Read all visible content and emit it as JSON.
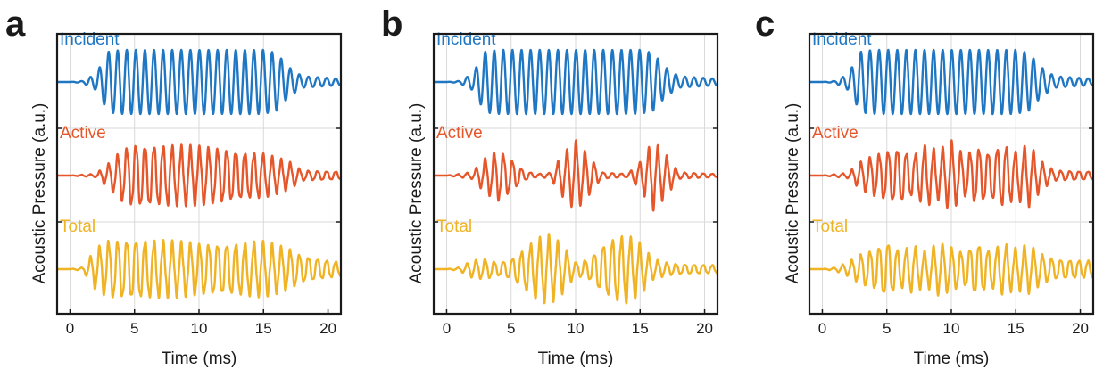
{
  "chart_data": [
    {
      "type": "line",
      "panel": "a",
      "xlabel": "Time (ms)",
      "ylabel": "Acoustic Pressure (a.u.)",
      "xlim": [
        -1,
        21
      ],
      "xticks": [
        0,
        5,
        10,
        15,
        20
      ],
      "grid": true,
      "series": [
        {
          "name": "Incident",
          "color": "#1f77c4",
          "envelope": [
            [
              0,
              0
            ],
            [
              1,
              0.03
            ],
            [
              2,
              0.25
            ],
            [
              3,
              0.95
            ],
            [
              4,
              1
            ],
            [
              15,
              1
            ],
            [
              16,
              0.9
            ],
            [
              17,
              0.45
            ],
            [
              18,
              0.18
            ],
            [
              21,
              0.1
            ]
          ],
          "freq_per_ms": 1.42
        },
        {
          "name": "Active",
          "color": "#e5572b",
          "envelope": [
            [
              0,
              0
            ],
            [
              2,
              0.05
            ],
            [
              3,
              0.35
            ],
            [
              4,
              0.75
            ],
            [
              5,
              0.95
            ],
            [
              12,
              0.8
            ],
            [
              15,
              0.65
            ],
            [
              17,
              0.4
            ],
            [
              18,
              0.15
            ],
            [
              21,
              0.12
            ]
          ],
          "freq_per_ms": 1.42
        },
        {
          "name": "Total",
          "color": "#f0b323",
          "envelope": [
            [
              0,
              0
            ],
            [
              1,
              0.05
            ],
            [
              2,
              0.6
            ],
            [
              3,
              0.85
            ],
            [
              5,
              0.9
            ],
            [
              10,
              0.75
            ],
            [
              15,
              0.8
            ],
            [
              17,
              0.6
            ],
            [
              18,
              0.4
            ],
            [
              21,
              0.2
            ]
          ],
          "freq_per_ms": 1.42
        }
      ]
    },
    {
      "type": "line",
      "panel": "b",
      "xlabel": "Time (ms)",
      "ylabel": "Acoustic Pressure (a.u.)",
      "xlim": [
        -1,
        21
      ],
      "xticks": [
        0,
        5,
        10,
        15,
        20
      ],
      "grid": true,
      "series": [
        {
          "name": "Incident",
          "color": "#1f77c4",
          "envelope": [
            [
              0,
              0
            ],
            [
              1,
              0.03
            ],
            [
              2,
              0.25
            ],
            [
              3,
              0.95
            ],
            [
              4,
              1
            ],
            [
              15,
              1
            ],
            [
              16,
              0.9
            ],
            [
              17,
              0.45
            ],
            [
              18,
              0.18
            ],
            [
              21,
              0.1
            ]
          ],
          "freq_per_ms": 1.42
        },
        {
          "name": "Active",
          "color": "#e5572b",
          "envelope": [
            [
              0,
              0
            ],
            [
              2,
              0.1
            ],
            [
              3,
              0.5
            ],
            [
              4,
              0.75
            ],
            [
              5,
              0.5
            ],
            [
              6,
              0.15
            ],
            [
              7,
              0.05
            ],
            [
              8,
              0.08
            ],
            [
              9,
              0.6
            ],
            [
              10,
              1
            ],
            [
              11,
              0.6
            ],
            [
              12,
              0.1
            ],
            [
              14,
              0.05
            ],
            [
              15,
              0.4
            ],
            [
              16,
              1
            ],
            [
              17,
              0.6
            ],
            [
              18,
              0.1
            ],
            [
              21,
              0.05
            ]
          ],
          "freq_per_ms": 1.42
        },
        {
          "name": "Total",
          "color": "#f0b323",
          "envelope": [
            [
              0,
              0
            ],
            [
              1,
              0.05
            ],
            [
              2,
              0.25
            ],
            [
              3,
              0.3
            ],
            [
              4,
              0.2
            ],
            [
              5,
              0.3
            ],
            [
              6,
              0.6
            ],
            [
              7,
              0.9
            ],
            [
              8,
              1
            ],
            [
              9,
              0.7
            ],
            [
              10,
              0.2
            ],
            [
              11,
              0.3
            ],
            [
              12,
              0.7
            ],
            [
              13,
              0.95
            ],
            [
              14,
              1
            ],
            [
              15,
              0.75
            ],
            [
              16,
              0.3
            ],
            [
              17,
              0.2
            ],
            [
              18,
              0.15
            ],
            [
              21,
              0.12
            ]
          ],
          "freq_per_ms": 1.42
        }
      ]
    },
    {
      "type": "line",
      "panel": "c",
      "xlabel": "Time (ms)",
      "ylabel": "Acoustic Pressure (a.u.)",
      "xlim": [
        -1,
        21
      ],
      "xticks": [
        0,
        5,
        10,
        15,
        20
      ],
      "grid": true,
      "series": [
        {
          "name": "Incident",
          "color": "#1f77c4",
          "envelope": [
            [
              0,
              0
            ],
            [
              1,
              0.03
            ],
            [
              2,
              0.25
            ],
            [
              3,
              0.95
            ],
            [
              4,
              1
            ],
            [
              15,
              1
            ],
            [
              16,
              0.9
            ],
            [
              17,
              0.45
            ],
            [
              18,
              0.18
            ],
            [
              21,
              0.1
            ]
          ],
          "freq_per_ms": 1.42
        },
        {
          "name": "Active",
          "color": "#e5572b",
          "envelope": [
            [
              0,
              0
            ],
            [
              2,
              0.08
            ],
            [
              3,
              0.4
            ],
            [
              4,
              0.6
            ],
            [
              5,
              0.75
            ],
            [
              6,
              0.85
            ],
            [
              7,
              0.6
            ],
            [
              8,
              0.9
            ],
            [
              9,
              0.7
            ],
            [
              10,
              1
            ],
            [
              11,
              0.6
            ],
            [
              12,
              0.85
            ],
            [
              13,
              0.7
            ],
            [
              14,
              0.95
            ],
            [
              15,
              0.7
            ],
            [
              16,
              0.9
            ],
            [
              17,
              0.4
            ],
            [
              18,
              0.15
            ],
            [
              21,
              0.12
            ]
          ],
          "freq_per_ms": 1.42
        },
        {
          "name": "Total",
          "color": "#f0b323",
          "envelope": [
            [
              0,
              0
            ],
            [
              1,
              0.05
            ],
            [
              2,
              0.2
            ],
            [
              3,
              0.45
            ],
            [
              4,
              0.6
            ],
            [
              5,
              0.85
            ],
            [
              6,
              0.55
            ],
            [
              7,
              0.7
            ],
            [
              8,
              0.5
            ],
            [
              9,
              0.75
            ],
            [
              10,
              0.65
            ],
            [
              11,
              0.5
            ],
            [
              12,
              0.8
            ],
            [
              13,
              0.55
            ],
            [
              14,
              0.75
            ],
            [
              15,
              0.6
            ],
            [
              16,
              0.7
            ],
            [
              17,
              0.45
            ],
            [
              18,
              0.3
            ],
            [
              21,
              0.25
            ]
          ],
          "freq_per_ms": 1.42
        }
      ]
    }
  ]
}
